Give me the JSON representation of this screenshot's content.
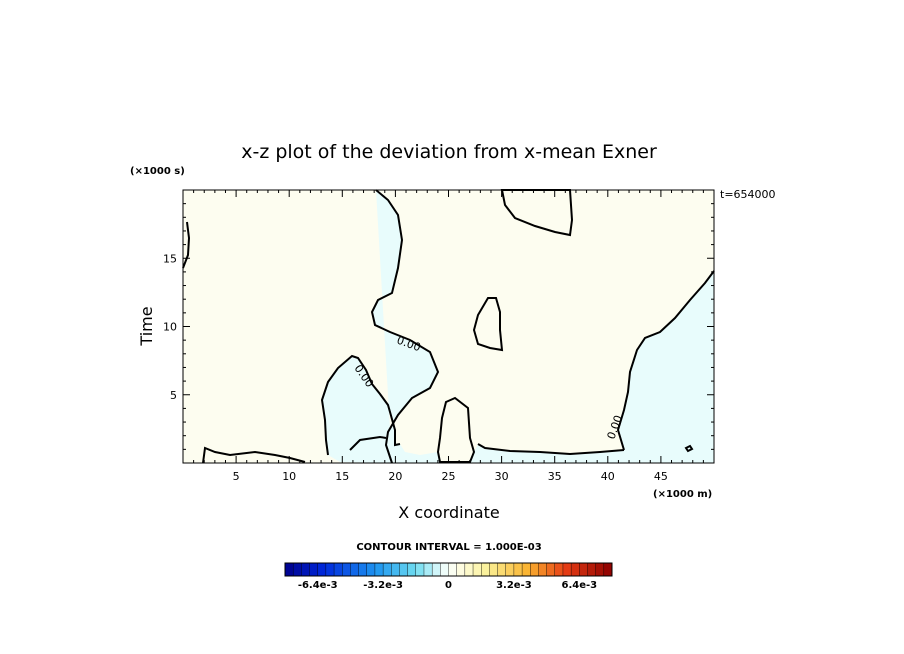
{
  "chart_data": {
    "type": "contour",
    "title": "x-z plot of the deviation from x-mean Exner",
    "xlabel": "X coordinate",
    "ylabel": "Time",
    "x_unit": "(×1000 m)",
    "y_unit": "(×1000 s)",
    "time_label": "t=654000",
    "xlim": [
      0,
      50
    ],
    "ylim": [
      0,
      20
    ],
    "x_ticks": [
      5,
      10,
      15,
      20,
      25,
      30,
      35,
      40,
      45
    ],
    "y_ticks": [
      5,
      10,
      15
    ],
    "contour_labels": [
      "0.00",
      "0.00",
      "0.00"
    ],
    "contour_interval": "CONTOUR INTERVAL = 1.000E-03",
    "colorbar": {
      "min": -0.008,
      "max": 0.008,
      "step": 0.0004,
      "tick_labels": [
        "-6.4e-3",
        "-3.2e-3",
        "0",
        "3.2e-3",
        "6.4e-3"
      ],
      "tick_values": [
        -0.0064,
        -0.0032,
        0,
        0.0032,
        0.0064
      ]
    },
    "regions": {
      "positive_color": "#fdfdf0",
      "negative_color": "#e8fcfc"
    }
  }
}
